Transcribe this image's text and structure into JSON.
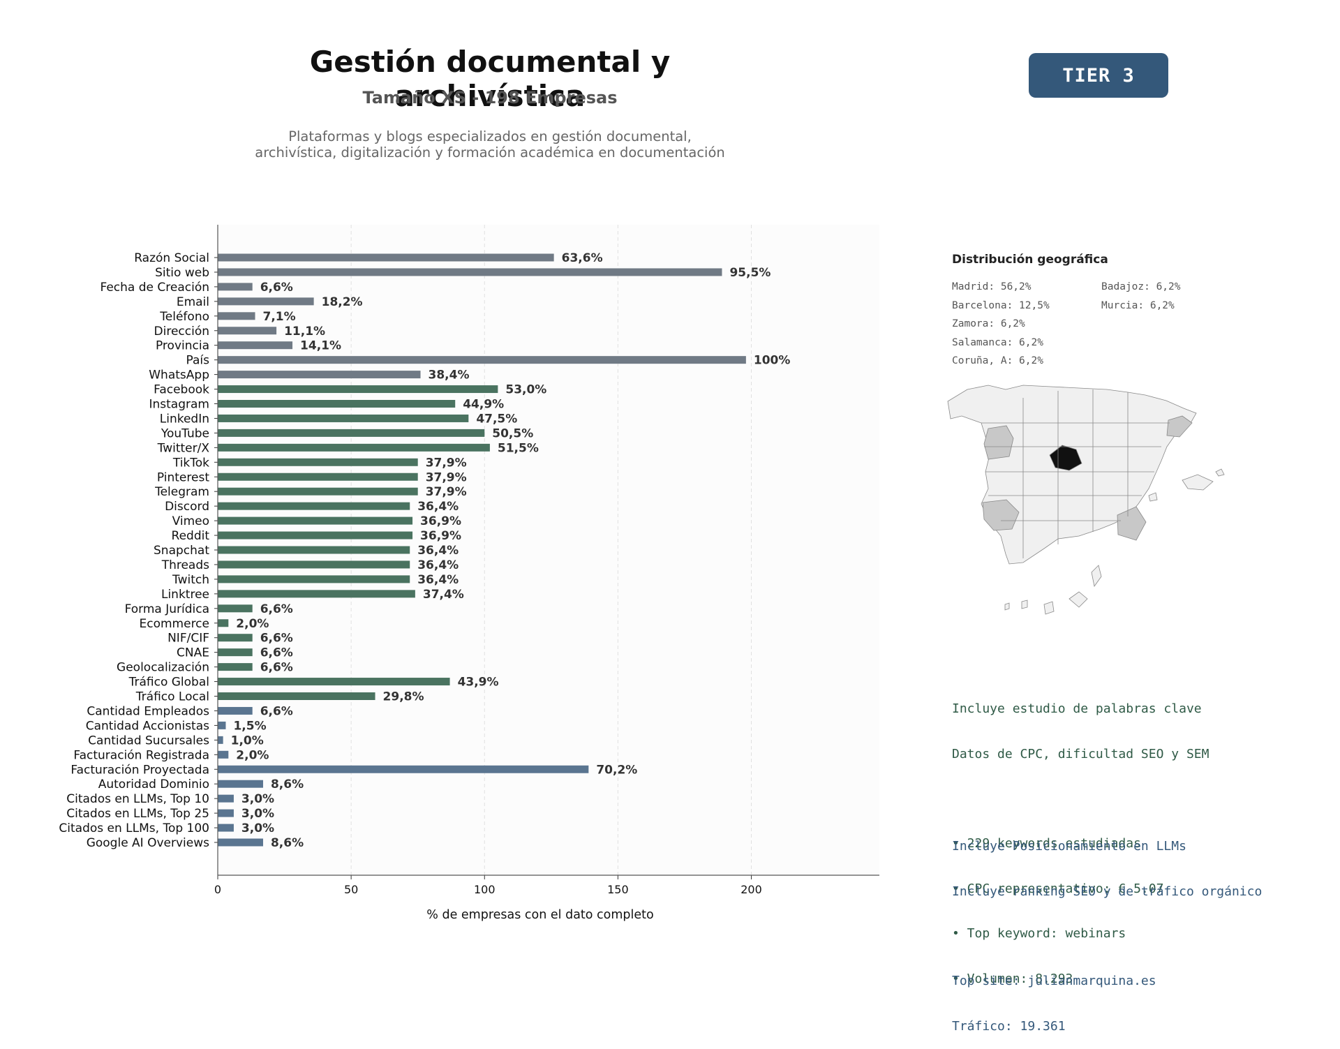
{
  "header": {
    "title": "Gestión documental y archivística",
    "subtitle": "Tamaño XS - 198 Empresas",
    "description_lines": [
      "Plataformas y blogs especializados en gestión documental,",
      "archivística, digitalización y formación académica en documentación"
    ],
    "tier_label": "TIER 3"
  },
  "colors": {
    "company_fields": "#707a85",
    "social_fields": "#4a7360",
    "metric_fields": "#5a7590",
    "tier_badge": "#34587a",
    "map_highlight": "#111111",
    "map_secondary": "#c8c8c8",
    "map_base": "#f0f0f0"
  },
  "chart_data": {
    "type": "bar",
    "orientation": "horizontal",
    "xlabel": "% de empresas con el dato completo",
    "xlim": [
      0,
      248
    ],
    "xticks": [
      0,
      50,
      100,
      150,
      200
    ],
    "grid": "vertical dashed",
    "categories": [
      "Razón Social",
      "Sitio web",
      "Fecha de Creación",
      "Email",
      "Teléfono",
      "Dirección",
      "Provincia",
      "País",
      "WhatsApp",
      "Facebook",
      "Instagram",
      "LinkedIn",
      "YouTube",
      "Twitter/X",
      "TikTok",
      "Pinterest",
      "Telegram",
      "Discord",
      "Vimeo",
      "Reddit",
      "Snapchat",
      "Threads",
      "Twitch",
      "Linktree",
      "Forma Jurídica",
      "Ecommerce",
      "NIF/CIF",
      "CNAE",
      "Geolocalización",
      "Tráfico Global",
      "Tráfico Local",
      "Cantidad Empleados",
      "Cantidad Accionistas",
      "Cantidad Sucursales",
      "Facturación Registrada",
      "Facturación Proyectada",
      "Autoridad Dominio",
      "Citados en LLMs, Top 10",
      "Citados en LLMs, Top 25",
      "Citados en LLMs, Top 100",
      "Google AI Overviews"
    ],
    "values": [
      126,
      189,
      13,
      36,
      14,
      22,
      28,
      198,
      76,
      105,
      89,
      94,
      100,
      102,
      75,
      75,
      75,
      72,
      73,
      73,
      72,
      72,
      72,
      74,
      13,
      4,
      13,
      13,
      13,
      87,
      59,
      13,
      3,
      2,
      4,
      139,
      17,
      6,
      6,
      6,
      17
    ],
    "value_labels": [
      "63,6%",
      "95,5%",
      "6,6%",
      "18,2%",
      "7,1%",
      "11,1%",
      "14,1%",
      "100%",
      "38,4%",
      "53,0%",
      "44,9%",
      "47,5%",
      "50,5%",
      "51,5%",
      "37,9%",
      "37,9%",
      "37,9%",
      "36,4%",
      "36,9%",
      "36,9%",
      "36,4%",
      "36,4%",
      "36,4%",
      "37,4%",
      "6,6%",
      "2,0%",
      "6,6%",
      "6,6%",
      "6,6%",
      "43,9%",
      "29,8%",
      "6,6%",
      "1,5%",
      "1,0%",
      "2,0%",
      "70,2%",
      "8,6%",
      "3,0%",
      "3,0%",
      "3,0%",
      "8,6%"
    ],
    "groups": [
      "company",
      "company",
      "company",
      "company",
      "company",
      "company",
      "company",
      "company",
      "company",
      "social",
      "social",
      "social",
      "social",
      "social",
      "social",
      "social",
      "social",
      "social",
      "social",
      "social",
      "social",
      "social",
      "social",
      "social",
      "social",
      "social",
      "social",
      "social",
      "social",
      "social",
      "social",
      "metric",
      "metric",
      "metric",
      "metric",
      "metric",
      "metric",
      "metric",
      "metric",
      "metric",
      "metric"
    ]
  },
  "geo": {
    "title": "Distribución geográfica",
    "left_column": [
      "Madrid: 56,2%",
      "Barcelona: 12,5%",
      "Zamora: 6,2%",
      "Salamanca: 6,2%",
      "Coruña, A: 6,2%"
    ],
    "right_column": [
      "Badajoz: 6,2%",
      "Murcia: 6,2%"
    ]
  },
  "keywords_block": {
    "lines": [
      "Incluye estudio de palabras clave",
      "Datos de CPC, dificultad SEO y SEM"
    ],
    "bullets": [
      "• 229 keywords estudiadas",
      "• CPC representativo: € 5.07",
      "• Top keyword: webinars",
      "• Volumen: 8.293"
    ]
  },
  "llm_block": {
    "lines": [
      "Incluye Posicionamiento en LLMs",
      "Incluye ranking SEO y de tráfico orgánico"
    ],
    "top_site": "Top site: julianmarquina.es",
    "traffic": "Tráfico: 19.361"
  }
}
